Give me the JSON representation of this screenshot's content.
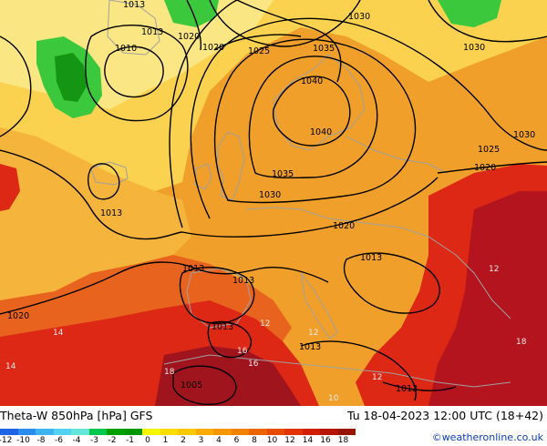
{
  "footer": {
    "title": "Theta-W 850hPa [hPa] GFS",
    "valid_time": "Tu 18-04-2023 12:00 UTC (18+42)",
    "credit": "©weatheronline.co.uk"
  },
  "colorbar": {
    "labels": [
      "-12",
      "-10",
      "-8",
      "-6",
      "-4",
      "-3",
      "-2",
      "-1",
      "0",
      "1",
      "2",
      "3",
      "4",
      "6",
      "8",
      "10",
      "12",
      "14",
      "16",
      "18"
    ],
    "colors": [
      "#1e64e6",
      "#2a8cf0",
      "#3cb4f0",
      "#50d2f0",
      "#64e6dc",
      "#00c850",
      "#00a000",
      "#009600",
      "#f5f500",
      "#fadc00",
      "#fac800",
      "#faaa00",
      "#f59600",
      "#f08200",
      "#ec6400",
      "#e84a00",
      "#e13200",
      "#d21e00",
      "#b41400",
      "#961400"
    ]
  },
  "isobars": [
    {
      "name": "isobar-1013-nw",
      "label": "1013"
    },
    {
      "name": "isobar-1010-nw",
      "label": "1010"
    },
    {
      "name": "isobar-1013-nw-top",
      "label": "1013"
    },
    {
      "name": "isobar-1020-north",
      "label": "1020"
    },
    {
      "name": "isobar-1025-north",
      "label": "1025"
    },
    {
      "name": "isobar-1030-ne",
      "label": "1030"
    },
    {
      "name": "isobar-1035-north",
      "label": "1035"
    },
    {
      "name": "isobar-1040-center",
      "label": "1040"
    },
    {
      "name": "isobar-1035-center",
      "label": "1035"
    },
    {
      "name": "isobar-1030-center",
      "label": "1030"
    },
    {
      "name": "isobar-1025-east",
      "label": "1025"
    },
    {
      "name": "isobar-1020-east",
      "label": "1020"
    },
    {
      "name": "isobar-1020-center",
      "label": "1020"
    },
    {
      "name": "isobar-1013-west",
      "label": "1013"
    },
    {
      "name": "isobar-1013-central",
      "label": "1013"
    },
    {
      "name": "isobar-1013-mid",
      "label": "1013"
    },
    {
      "name": "isobar-1020-southwest",
      "label": "1020"
    },
    {
      "name": "isobar-1013-south",
      "label": "1013"
    },
    {
      "name": "isobar-1013-spain",
      "label": "1013"
    },
    {
      "name": "isobar-1005-africa",
      "label": "1005"
    },
    {
      "name": "isobar-1013-southeast",
      "label": "1013"
    }
  ],
  "temperature_labels": [
    "14",
    "14",
    "12",
    "12",
    "16",
    "16",
    "18",
    "12",
    "18",
    "10",
    "12"
  ]
}
